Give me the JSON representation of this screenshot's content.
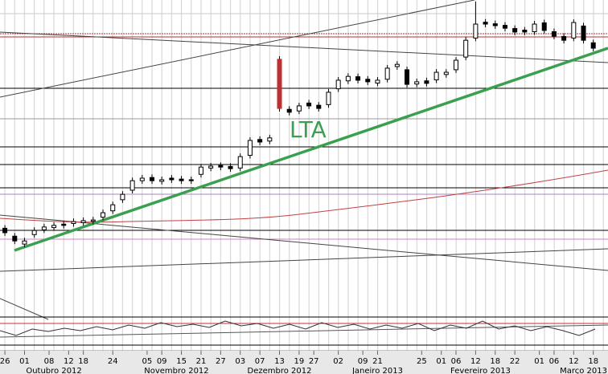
{
  "chart_data": {
    "type": "candlestick",
    "annotation": "LTA",
    "x": [
      1,
      3,
      5,
      7,
      9,
      11,
      13,
      15,
      17,
      19,
      21,
      23,
      25,
      27,
      29,
      31,
      33,
      35,
      37,
      39,
      41,
      43,
      45,
      47,
      49,
      51,
      53,
      55,
      57,
      59,
      61,
      63,
      65,
      67,
      69,
      71,
      73,
      75,
      77,
      79,
      81,
      83,
      85,
      87,
      89,
      91,
      93,
      95,
      97,
      99,
      101,
      103,
      105,
      107,
      109,
      111,
      113,
      115,
      117,
      119,
      121
    ],
    "open": [
      28,
      25.5,
      23,
      26,
      27.5,
      28.2,
      29.3,
      29.5,
      29.8,
      30.2,
      31.5,
      33.5,
      37,
      40,
      43,
      44,
      42.8,
      43.8,
      43.5,
      43.3,
      45,
      47,
      47.8,
      47.5,
      47,
      51,
      56,
      55.5,
      81.3,
      65.5,
      65,
      67.5,
      66.8,
      67,
      72,
      74.5,
      75.8,
      75,
      73.8,
      75,
      79,
      78,
      73.5,
      74.5,
      74.8,
      76.5,
      78,
      82,
      88,
      93,
      92.5,
      92,
      91,
      90.5,
      90,
      92.8,
      90,
      88.5,
      88,
      91.8,
      86.5
    ],
    "high": [
      29,
      26.5,
      25,
      28.3,
      29.4,
      29.9,
      30.3,
      31.1,
      31.4,
      31.6,
      33.9,
      36.4,
      39.7,
      44,
      44.8,
      45,
      44.3,
      44.8,
      44.5,
      44.3,
      48.3,
      48.6,
      48.8,
      48.5,
      51.6,
      56.7,
      57,
      57.5,
      82.3,
      66.5,
      67.6,
      68.5,
      67.8,
      71.9,
      75.7,
      76.9,
      76.8,
      76,
      75.7,
      79.5,
      80.7,
      79,
      75.2,
      75.5,
      78.2,
      78.2,
      82,
      88.3,
      99.5,
      94,
      93.5,
      93,
      92,
      91.5,
      93.4,
      93.8,
      91,
      89.5,
      93.9,
      92.8,
      87.5
    ],
    "low": [
      25.6,
      23,
      22,
      25,
      26.5,
      27.2,
      27.9,
      28.5,
      28.8,
      29.2,
      30.5,
      32.5,
      36,
      39,
      42,
      42,
      41.8,
      42.3,
      42,
      42,
      44,
      46,
      46.3,
      45.8,
      46,
      50,
      54.2,
      54.5,
      64.8,
      63.6,
      64,
      65.6,
      64.8,
      66,
      71,
      73.5,
      73.7,
      73.2,
      72.8,
      74,
      78,
      72.4,
      72.5,
      72.7,
      73.8,
      75.5,
      77,
      81,
      87,
      91.4,
      90.9,
      90.1,
      88.9,
      88.9,
      89,
      89.4,
      87.6,
      86.3,
      87,
      86.3,
      83.8
    ],
    "close": [
      26.6,
      24,
      24,
      27.3,
      28.4,
      28.9,
      28.9,
      30.1,
      30.4,
      30.6,
      32.9,
      35.4,
      38.7,
      43,
      43.8,
      43,
      43.3,
      43.3,
      43,
      43,
      47.3,
      47.6,
      47.3,
      46.8,
      50.6,
      55.7,
      55.2,
      56.5,
      65.8,
      64.6,
      66.6,
      66.6,
      65.8,
      70.9,
      74.7,
      75.9,
      74.7,
      74.2,
      74.7,
      78.5,
      79.7,
      73.4,
      74.2,
      73.7,
      77.2,
      77.2,
      81,
      87.3,
      92.4,
      92.4,
      91.9,
      91.1,
      89.9,
      89.9,
      92.4,
      90.4,
      88.6,
      87.3,
      92.9,
      87.3,
      84.8
    ],
    "up_color": "#ffffff",
    "down_color": "#000000",
    "xlim": [
      0,
      124
    ],
    "ylim": [
      0,
      100
    ],
    "xticks": [
      {
        "value": 1,
        "label": "26"
      },
      {
        "value": 5,
        "label": "01"
      },
      {
        "value": 10,
        "label": "08"
      },
      {
        "value": 14,
        "label": "12"
      },
      {
        "value": 17,
        "label": "18"
      },
      {
        "value": 23,
        "label": "24"
      },
      {
        "value": 30,
        "label": "05"
      },
      {
        "value": 33,
        "label": "09"
      },
      {
        "value": 37,
        "label": "15"
      },
      {
        "value": 41,
        "label": "21"
      },
      {
        "value": 45,
        "label": "27"
      },
      {
        "value": 49,
        "label": "03"
      },
      {
        "value": 53,
        "label": "07"
      },
      {
        "value": 57,
        "label": "13"
      },
      {
        "value": 61,
        "label": "19"
      },
      {
        "value": 64,
        "label": "27"
      },
      {
        "value": 69,
        "label": "02"
      },
      {
        "value": 74,
        "label": "09"
      },
      {
        "value": 77,
        "label": "21"
      },
      {
        "value": 86,
        "label": "25"
      },
      {
        "value": 90,
        "label": "01"
      },
      {
        "value": 93,
        "label": "06"
      },
      {
        "value": 97,
        "label": "12"
      },
      {
        "value": 101,
        "label": "18"
      },
      {
        "value": 105,
        "label": "22"
      },
      {
        "value": 110,
        "label": "01"
      },
      {
        "value": 113,
        "label": "06"
      },
      {
        "value": 117,
        "label": "12"
      },
      {
        "value": 121,
        "label": "18"
      }
    ],
    "month_ticks": [
      {
        "value": 11,
        "label": "Outubro 2012"
      },
      {
        "value": 36,
        "label": "Novembro 2012"
      },
      {
        "value": 57,
        "label": "Dezembro 2012"
      },
      {
        "value": 77,
        "label": "Janeiro 2013"
      },
      {
        "value": 98,
        "label": "Fevereiro 2013"
      },
      {
        "value": 119,
        "label": "Março 2013"
      }
    ]
  }
}
